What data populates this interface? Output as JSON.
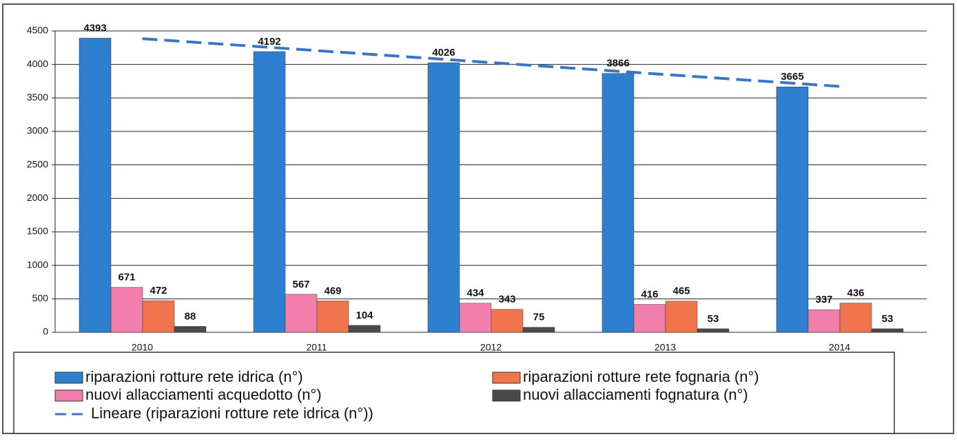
{
  "chart_data": {
    "type": "bar",
    "categories": [
      "2010",
      "2011",
      "2012",
      "2013",
      "2014"
    ],
    "series": [
      {
        "name": "riparazioni rotture rete idrica (n°)",
        "color": "#2f7fd0",
        "values": [
          4393,
          4192,
          4026,
          3866,
          3665
        ]
      },
      {
        "name": "nuovi allacciamenti acquedotto (n°)",
        "color": "#f27fab",
        "values": [
          671,
          567,
          434,
          416,
          337
        ]
      },
      {
        "name": "riparazioni rotture rete fognaria (n°)",
        "color": "#f0744c",
        "values": [
          472,
          469,
          343,
          465,
          436
        ]
      },
      {
        "name": "nuovi allacciamenti fognatura (n°)",
        "color": "#4a4a4a",
        "values": [
          88,
          104,
          75,
          53,
          53
        ]
      }
    ],
    "trend": {
      "name": "Lineare (riparazioni rotture rete idrica (n°))",
      "color": "#3a75c4",
      "values": [
        4385,
        4207,
        4028,
        3850,
        3672
      ]
    },
    "ylim": [
      0,
      4500
    ],
    "yticks": [
      0,
      500,
      1000,
      1500,
      2000,
      2500,
      3000,
      3500,
      4000,
      4500
    ],
    "grid": true
  }
}
